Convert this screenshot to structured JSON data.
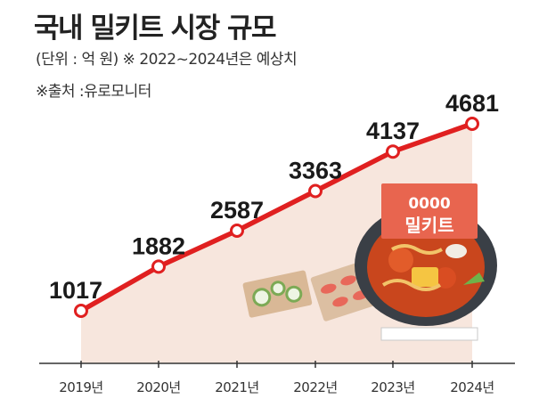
{
  "header": {
    "title": "국내 밀키트 시장 규모",
    "subtitle": "(단위 : 억 원)  ※ 2022~2024년은 예상치",
    "source": "※출처 :유로모니터"
  },
  "illustration": {
    "package_digits": "0000",
    "package_label": "밀키트"
  },
  "colors": {
    "line": "#e02020",
    "area": "#f7e6dd",
    "axis": "#333333"
  },
  "chart_data": {
    "type": "line",
    "categories": [
      "2019년",
      "2020년",
      "2021년",
      "2022년",
      "2023년",
      "2024년"
    ],
    "values": [
      1017,
      1882,
      2587,
      3363,
      4137,
      4681
    ],
    "title": "국내 밀키트 시장 규모",
    "unit": "억 원",
    "ylim": [
      0,
      5200
    ],
    "area_fill": true,
    "grid": false,
    "legend": "none"
  }
}
